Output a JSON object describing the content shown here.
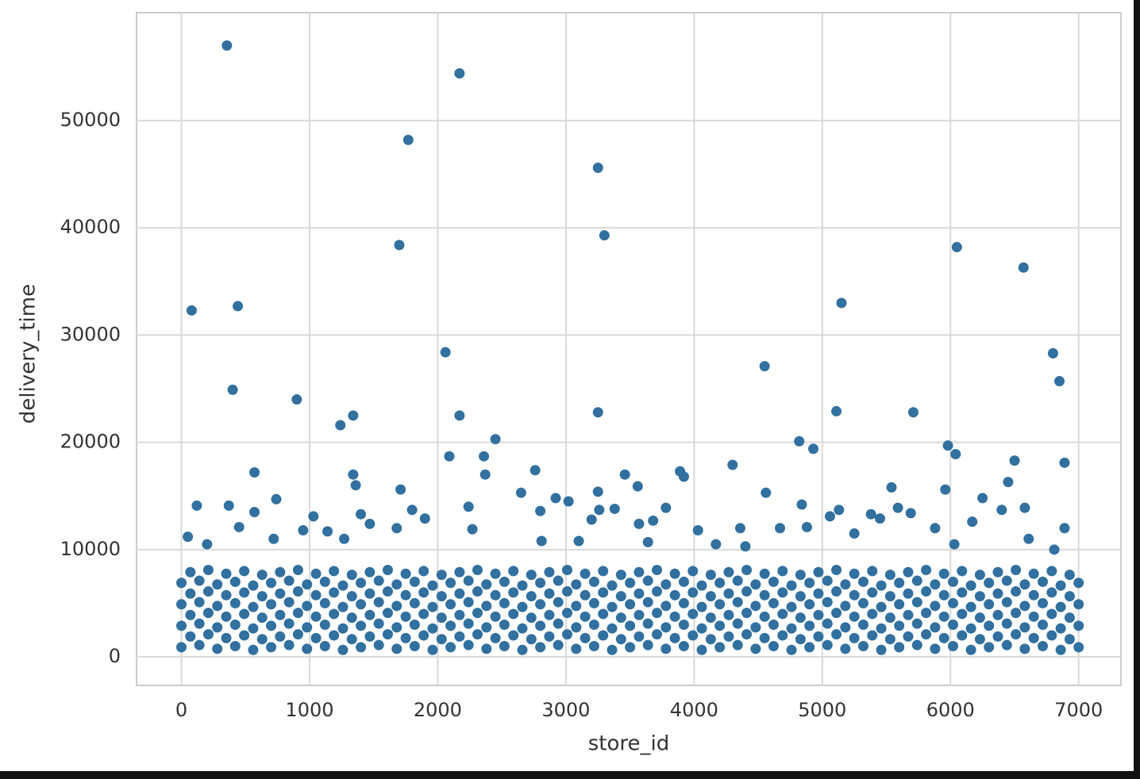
{
  "chart_data": {
    "type": "scatter",
    "x_label": "store_id",
    "y_label": "delivery_time",
    "color": "#31709f",
    "grid": true,
    "xlim": [
      -350,
      7330
    ],
    "ylim": [
      -2660,
      60060
    ],
    "xticks": [
      0,
      1000,
      2000,
      3000,
      4000,
      5000,
      6000,
      7000
    ],
    "yticks": [
      0,
      10000,
      20000,
      30000,
      40000,
      50000
    ],
    "x": [
      0,
      140,
      280,
      420,
      560,
      700,
      840,
      980,
      1120,
      1260,
      1400,
      1540,
      1680,
      1820,
      1960,
      2100,
      2240,
      2380,
      2520,
      2660,
      2800,
      2940,
      3080,
      3220,
      3360,
      3500,
      3640,
      3780,
      3920,
      4060,
      4200,
      4340,
      4480,
      4620,
      4760,
      4900,
      5040,
      5180,
      5320,
      5460,
      5600,
      5740,
      5880,
      6020,
      6160,
      6300,
      6440,
      6580,
      6720,
      6860,
      7000,
      70,
      210,
      350,
      490,
      630,
      770,
      910,
      1050,
      1190,
      1330,
      1470,
      1610,
      1750,
      1890,
      2030,
      2170,
      2310,
      2450,
      2590,
      2730,
      2870,
      3010,
      3150,
      3290,
      3430,
      3570,
      3710,
      3850,
      3990,
      4130,
      4270,
      4410,
      4550,
      4690,
      4830,
      4970,
      5110,
      5250,
      5390,
      5530,
      5670,
      5810,
      5950,
      6090,
      6230,
      6370,
      6510,
      6650,
      6790,
      6930,
      0,
      140,
      280,
      420,
      560,
      700,
      840,
      980,
      1120,
      1260,
      1400,
      1540,
      1680,
      1820,
      1960,
      2100,
      2240,
      2380,
      2520,
      2660,
      2800,
      2940,
      3080,
      3220,
      3360,
      3500,
      3640,
      3780,
      3920,
      4060,
      4200,
      4340,
      4480,
      4620,
      4760,
      4900,
      5040,
      5180,
      5320,
      5460,
      5600,
      5740,
      5880,
      6020,
      6160,
      6300,
      6440,
      6580,
      6720,
      6860,
      7000,
      70,
      210,
      350,
      490,
      630,
      770,
      910,
      1050,
      1190,
      1330,
      1470,
      1610,
      1750,
      1890,
      2030,
      2170,
      2310,
      2450,
      2590,
      2730,
      2870,
      3010,
      3150,
      3290,
      3430,
      3570,
      3710,
      3850,
      3990,
      4130,
      4270,
      4410,
      4550,
      4690,
      4830,
      4970,
      5110,
      5250,
      5390,
      5530,
      5670,
      5810,
      5950,
      6090,
      6230,
      6370,
      6510,
      6650,
      6790,
      6930,
      0,
      140,
      280,
      420,
      560,
      700,
      840,
      980,
      1120,
      1260,
      1400,
      1540,
      1680,
      1820,
      1960,
      2100,
      2240,
      2380,
      2520,
      2660,
      2800,
      2940,
      3080,
      3220,
      3360,
      3500,
      3640,
      3780,
      3920,
      4060,
      4200,
      4340,
      4480,
      4620,
      4760,
      4900,
      5040,
      5180,
      5320,
      5460,
      5600,
      5740,
      5880,
      6020,
      6160,
      6300,
      6440,
      6580,
      6720,
      6860,
      7000,
      70,
      210,
      350,
      490,
      630,
      770,
      910,
      1050,
      1190,
      1330,
      1470,
      1610,
      1750,
      1890,
      2030,
      2170,
      2310,
      2450,
      2590,
      2730,
      2870,
      3010,
      3150,
      3290,
      3430,
      3570,
      3710,
      3850,
      3990,
      4130,
      4270,
      4410,
      4550,
      4690,
      4830,
      4970,
      5110,
      5250,
      5390,
      5530,
      5670,
      5810,
      5950,
      6090,
      6230,
      6370,
      6510,
      6650,
      6790,
      6930,
      0,
      140,
      280,
      420,
      560,
      700,
      840,
      980,
      1120,
      1260,
      1400,
      1540,
      1680,
      1820,
      1960,
      2100,
      2240,
      2380,
      2520,
      2660,
      2800,
      2940,
      3080,
      3220,
      3360,
      3500,
      3640,
      3780,
      3920,
      4060,
      4200,
      4340,
      4480,
      4620,
      4760,
      4900,
      5040,
      5180,
      5320,
      5460,
      5600,
      5740,
      5880,
      6020,
      6160,
      6300,
      6440,
      6580,
      6720,
      6860,
      7000,
      70,
      210,
      350,
      490,
      630,
      770,
      910,
      1050,
      1190,
      1330,
      1470,
      1610,
      1750,
      1890,
      2030,
      2170,
      2310,
      2450,
      2590,
      2730,
      2870,
      3010,
      3150,
      3290,
      3430,
      3570,
      3710,
      3850,
      3990,
      4130,
      4270,
      4410,
      4550,
      4690,
      4830,
      4970,
      5110,
      5250,
      5390,
      5530,
      5670,
      5810,
      5950,
      6090,
      6230,
      6370,
      6510,
      6650,
      6790,
      6930,
      355,
      2170,
      1770,
      3250,
      1700,
      3300,
      6050,
      6570,
      80,
      440,
      5150,
      2060,
      6800,
      6850,
      400,
      900,
      4550,
      1340,
      1240,
      2170,
      3250,
      5110,
      5710,
      2450,
      4820,
      4930,
      5980,
      6040,
      2090,
      2360,
      4300,
      6500,
      6890,
      2370,
      2760,
      3890,
      3920,
      570,
      1340,
      1360,
      3460,
      3560,
      4560,
      5540,
      5960,
      1710,
      3250,
      2650,
      6450,
      120,
      370,
      740,
      1800,
      2240,
      2800,
      2920,
      3020,
      3260,
      3380,
      3780,
      4840,
      5130,
      6250,
      6400,
      6580,
      5590,
      5690,
      570,
      1030,
      1400,
      1900,
      3200,
      3570,
      3680,
      4030,
      4670,
      4880,
      5380,
      5450,
      5880,
      6170,
      6890,
      450,
      1470,
      1680,
      2270,
      950,
      1140,
      4360,
      5060,
      6610,
      2810,
      3640,
      4170,
      4400,
      5250,
      6030,
      6810,
      200,
      50,
      720,
      1270,
      3100
    ],
    "values": [
      900,
      1100,
      750,
      1000,
      650,
      900,
      1100,
      750,
      1000,
      650,
      900,
      1100,
      750,
      1000,
      650,
      900,
      1100,
      750,
      1000,
      650,
      900,
      1100,
      750,
      1000,
      650,
      900,
      1100,
      750,
      1000,
      650,
      900,
      1100,
      750,
      1000,
      650,
      900,
      1100,
      750,
      1000,
      650,
      900,
      1100,
      750,
      1000,
      650,
      900,
      1100,
      750,
      1000,
      650,
      900,
      1900,
      2100,
      1750,
      2000,
      1650,
      1900,
      2100,
      1750,
      2000,
      1650,
      1900,
      2100,
      1750,
      2000,
      1650,
      1900,
      2100,
      1750,
      2000,
      1650,
      1900,
      2100,
      1750,
      2000,
      1650,
      1900,
      2100,
      1750,
      2000,
      1650,
      1900,
      2100,
      1750,
      2000,
      1650,
      1900,
      2100,
      1750,
      2000,
      1650,
      1900,
      2100,
      1750,
      2000,
      1650,
      1900,
      2100,
      1750,
      2000,
      1650,
      2900,
      3100,
      2750,
      3000,
      2650,
      2900,
      3100,
      2750,
      3000,
      2650,
      2900,
      3100,
      2750,
      3000,
      2650,
      2900,
      3100,
      2750,
      3000,
      2650,
      2900,
      3100,
      2750,
      3000,
      2650,
      2900,
      3100,
      2750,
      3000,
      2650,
      2900,
      3100,
      2750,
      3000,
      2650,
      2900,
      3100,
      2750,
      3000,
      2650,
      2900,
      3100,
      2750,
      3000,
      2650,
      2900,
      3100,
      2750,
      3000,
      2650,
      2900,
      3900,
      4100,
      3750,
      4000,
      3650,
      3900,
      4100,
      3750,
      4000,
      3650,
      3900,
      4100,
      3750,
      4000,
      3650,
      3900,
      4100,
      3750,
      4000,
      3650,
      3900,
      4100,
      3750,
      4000,
      3650,
      3900,
      4100,
      3750,
      4000,
      3650,
      3900,
      4100,
      3750,
      4000,
      3650,
      3900,
      4100,
      3750,
      4000,
      3650,
      3900,
      4100,
      3750,
      4000,
      3650,
      3900,
      4100,
      3750,
      4000,
      3650,
      4900,
      5100,
      4750,
      5000,
      4650,
      4900,
      5100,
      4750,
      5000,
      4650,
      4900,
      5100,
      4750,
      5000,
      4650,
      4900,
      5100,
      4750,
      5000,
      4650,
      4900,
      5100,
      4750,
      5000,
      4650,
      4900,
      5100,
      4750,
      5000,
      4650,
      4900,
      5100,
      4750,
      5000,
      4650,
      4900,
      5100,
      4750,
      5000,
      4650,
      4900,
      5100,
      4750,
      5000,
      4650,
      4900,
      5100,
      4750,
      5000,
      4650,
      4900,
      5900,
      6100,
      5750,
      6000,
      5650,
      5900,
      6100,
      5750,
      6000,
      5650,
      5900,
      6100,
      5750,
      6000,
      5650,
      5900,
      6100,
      5750,
      6000,
      5650,
      5900,
      6100,
      5750,
      6000,
      5650,
      5900,
      6100,
      5750,
      6000,
      5650,
      5900,
      6100,
      5750,
      6000,
      5650,
      5900,
      6100,
      5750,
      6000,
      5650,
      5900,
      6100,
      5750,
      6000,
      5650,
      5900,
      6100,
      5750,
      6000,
      5650,
      6900,
      7100,
      6750,
      7000,
      6650,
      6900,
      7100,
      6750,
      7000,
      6650,
      6900,
      7100,
      6750,
      7000,
      6650,
      6900,
      7100,
      6750,
      7000,
      6650,
      6900,
      7100,
      6750,
      7000,
      6650,
      6900,
      7100,
      6750,
      7000,
      6650,
      6900,
      7100,
      6750,
      7000,
      6650,
      6900,
      7100,
      6750,
      7000,
      6650,
      6900,
      7100,
      6750,
      7000,
      6650,
      6900,
      7100,
      6750,
      7000,
      6650,
      6900,
      7900,
      8100,
      7750,
      8000,
      7650,
      7900,
      8100,
      7750,
      8000,
      7650,
      7900,
      8100,
      7750,
      8000,
      7650,
      7900,
      8100,
      7750,
      8000,
      7650,
      7900,
      8100,
      7750,
      8000,
      7650,
      7900,
      8100,
      7750,
      8000,
      7650,
      7900,
      8100,
      7750,
      8000,
      7650,
      7900,
      8100,
      7750,
      8000,
      7650,
      7900,
      8100,
      7750,
      8000,
      7650,
      7900,
      8100,
      7750,
      8000,
      7650,
      57000,
      54400,
      48200,
      45600,
      38400,
      39300,
      38200,
      36300,
      32300,
      32700,
      33000,
      28400,
      28300,
      25700,
      24900,
      24000,
      27100,
      22500,
      21600,
      22500,
      22800,
      22900,
      22800,
      20300,
      20100,
      19400,
      19700,
      18900,
      18700,
      18700,
      17900,
      18300,
      18100,
      17000,
      17400,
      17300,
      16800,
      17200,
      17000,
      16000,
      17000,
      15900,
      15300,
      15800,
      15600,
      15600,
      15400,
      15300,
      16300,
      14100,
      14100,
      14700,
      13700,
      14000,
      13600,
      14800,
      14500,
      13700,
      13800,
      13900,
      14200,
      13700,
      14800,
      13700,
      13900,
      13900,
      13400,
      13500,
      13100,
      13300,
      12900,
      12800,
      12400,
      12700,
      11800,
      12000,
      12100,
      13300,
      12900,
      12000,
      12600,
      12000,
      12100,
      12400,
      12000,
      11900,
      11800,
      11700,
      12000,
      13100,
      11000,
      10800,
      10700,
      10500,
      10300,
      11500,
      10500,
      10000,
      10500,
      11200,
      11000,
      11000,
      10800
    ]
  }
}
